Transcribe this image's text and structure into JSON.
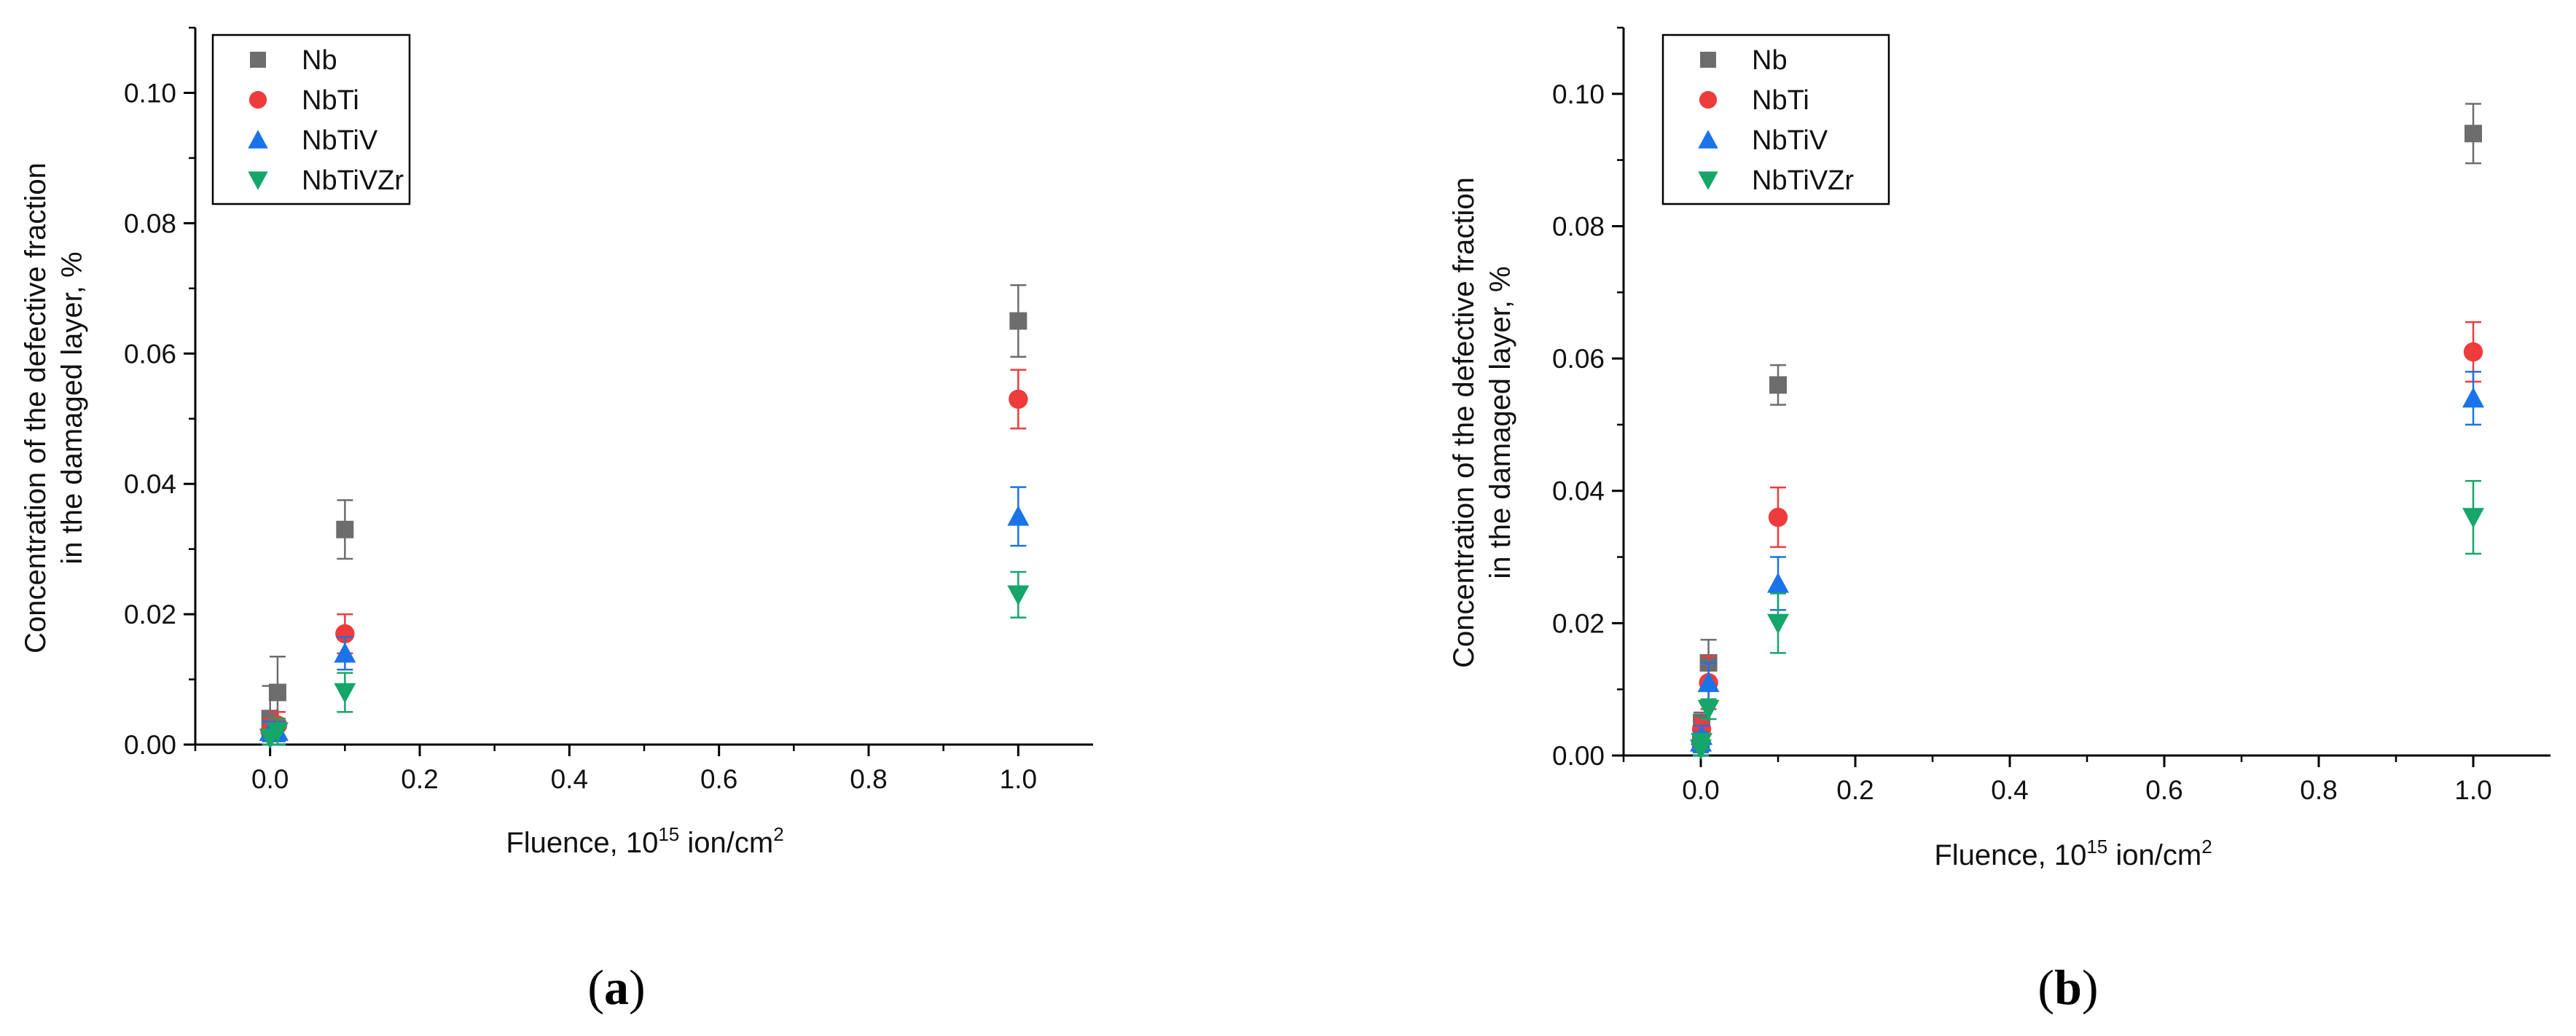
{
  "colors": {
    "Nb": "#6d6d6d",
    "NbTi": "#ef3b3b",
    "NbTiV": "#1a73e8",
    "NbTiVZr": "#16a66a"
  },
  "chart_data": [
    {
      "type": "scatter",
      "panel_label": "a",
      "xlabel_prefix": "Fluence, 10",
      "xlabel_exp": "15",
      "xlabel_unit": " ion/cm",
      "xlabel_unit_exp": "2",
      "ylabel_line1": "Concentration of the defective fraction",
      "ylabel_line2": "in the damaged layer, %",
      "xlim": [
        -0.1,
        1.1
      ],
      "ylim": [
        0,
        0.11
      ],
      "xticks": [
        "0.0",
        "0.2",
        "0.4",
        "0.6",
        "0.8",
        "1.0"
      ],
      "yticks": [
        "0.00",
        "0.02",
        "0.04",
        "0.06",
        "0.08",
        "0.10"
      ],
      "legend_position": "top-left",
      "series": [
        {
          "name": "Nb",
          "marker": "square",
          "x": [
            0.0,
            0.01,
            0.1,
            1.0
          ],
          "y": [
            0.004,
            0.008,
            0.033,
            0.065
          ],
          "err": [
            0.005,
            0.0055,
            0.0045,
            0.0055
          ]
        },
        {
          "name": "NbTi",
          "marker": "circle",
          "x": [
            0.0,
            0.01,
            0.1,
            1.0
          ],
          "y": [
            0.002,
            0.003,
            0.017,
            0.053
          ],
          "err": [
            0.002,
            0.002,
            0.003,
            0.0045
          ]
        },
        {
          "name": "NbTiV",
          "marker": "triangle-up",
          "x": [
            0.0,
            0.01,
            0.1,
            1.0
          ],
          "y": [
            0.002,
            0.002,
            0.014,
            0.035
          ],
          "err": [
            0.0015,
            0.0015,
            0.0025,
            0.0045
          ]
        },
        {
          "name": "NbTiVZr",
          "marker": "triangle-down",
          "x": [
            0.0,
            0.01,
            0.1,
            1.0
          ],
          "y": [
            0.001,
            0.002,
            0.008,
            0.023
          ],
          "err": [
            0.001,
            0.002,
            0.003,
            0.0035
          ]
        }
      ]
    },
    {
      "type": "scatter",
      "panel_label": "b",
      "xlabel_prefix": "Fluence, 10",
      "xlabel_exp": "15",
      "xlabel_unit": " ion/cm",
      "xlabel_unit_exp": "2",
      "ylabel_line1": "Concentration of the defective fraction",
      "ylabel_line2": "in the damaged layer, %",
      "xlim": [
        -0.1,
        1.1
      ],
      "ylim": [
        0,
        0.11
      ],
      "xticks": [
        "0.0",
        "0.2",
        "0.4",
        "0.6",
        "0.8",
        "1.0"
      ],
      "yticks": [
        "0.00",
        "0.02",
        "0.04",
        "0.06",
        "0.08",
        "0.10"
      ],
      "legend_position": "top-left",
      "series": [
        {
          "name": "Nb",
          "marker": "square",
          "x": [
            0.0,
            0.001,
            0.01,
            0.1,
            1.0
          ],
          "y": [
            0.002,
            0.005,
            0.014,
            0.056,
            0.094
          ],
          "err": [
            0.0015,
            0.0015,
            0.0035,
            0.003,
            0.0045
          ]
        },
        {
          "name": "NbTi",
          "marker": "circle",
          "x": [
            0.0,
            0.001,
            0.01,
            0.1,
            1.0
          ],
          "y": [
            0.002,
            0.004,
            0.011,
            0.036,
            0.061
          ],
          "err": [
            0.0015,
            0.0015,
            0.004,
            0.0045,
            0.0045
          ]
        },
        {
          "name": "NbTiV",
          "marker": "triangle-up",
          "x": [
            0.0,
            0.001,
            0.01,
            0.1,
            1.0
          ],
          "y": [
            0.002,
            0.003,
            0.011,
            0.026,
            0.054
          ],
          "err": [
            0.0015,
            0.0015,
            0.003,
            0.004,
            0.004
          ]
        },
        {
          "name": "NbTiVZr",
          "marker": "triangle-down",
          "x": [
            0.0,
            0.001,
            0.01,
            0.1,
            1.0
          ],
          "y": [
            0.001,
            0.002,
            0.007,
            0.02,
            0.036
          ],
          "err": [
            0.001,
            0.001,
            0.0015,
            0.0045,
            0.0055
          ]
        }
      ]
    }
  ]
}
